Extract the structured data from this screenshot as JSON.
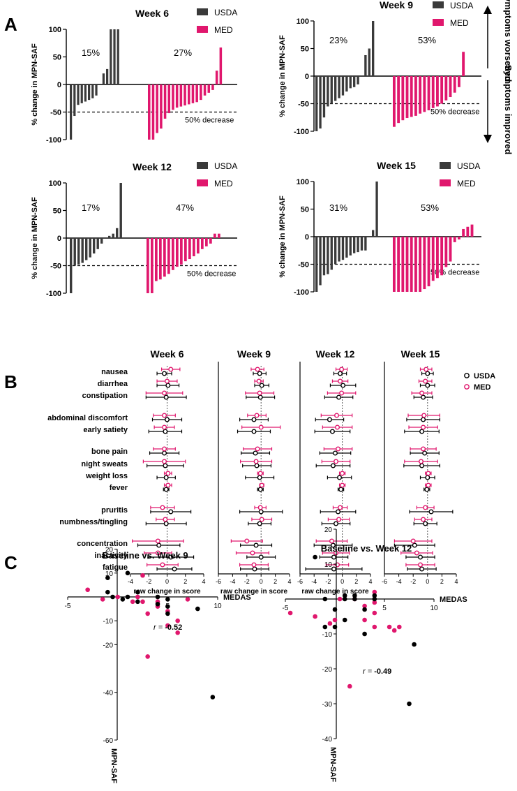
{
  "panel_labels": {
    "a": "A",
    "b": "B",
    "c": "C"
  },
  "colors": {
    "usda": "#3a3a3a",
    "med": "#e0176d",
    "axis": "#000000"
  },
  "chart_data": [
    {
      "type": "bar",
      "panel": "A",
      "title": "Week 6",
      "ylabel": "% change in MPN-SAF",
      "ylim": [
        -100,
        100
      ],
      "yticks": [
        -100,
        -50,
        0,
        50,
        100
      ],
      "legend": [
        "USDA",
        "MED"
      ],
      "threshold": {
        "value": -50,
        "label": "50% decrease"
      },
      "percent_labels": {
        "usda": "15%",
        "med": "27%"
      },
      "usda_values": [
        -100,
        -57,
        -37,
        -34,
        -31,
        -28,
        -25,
        -20,
        0,
        20,
        28,
        100,
        100,
        100
      ],
      "med_values": [
        -100,
        -100,
        -88,
        -80,
        -62,
        -52,
        -46,
        -42,
        -40,
        -38,
        -36,
        -34,
        -32,
        -28,
        -20,
        -15,
        -10,
        25,
        67
      ]
    },
    {
      "type": "bar",
      "panel": "A",
      "title": "Week 9",
      "ylabel": "% change in MPN-SAF",
      "ylim": [
        -100,
        100
      ],
      "yticks": [
        -100,
        -50,
        0,
        50,
        100
      ],
      "legend": [
        "USDA",
        "MED"
      ],
      "threshold": {
        "value": -50,
        "label": "50% decrease"
      },
      "percent_labels": {
        "usda": "23%",
        "med": "53%"
      },
      "side_annotations": {
        "up": "Symptoms worsened",
        "down": "Symptoms improved"
      },
      "usda_values": [
        -100,
        -95,
        -75,
        -55,
        -50,
        -45,
        -40,
        -35,
        -28,
        -22,
        -20,
        -15,
        0,
        38,
        50,
        100
      ],
      "med_values": [
        -92,
        -85,
        -80,
        -76,
        -74,
        -72,
        -68,
        -65,
        -62,
        -58,
        -55,
        -50,
        -44,
        -38,
        -30,
        -20,
        44
      ]
    },
    {
      "type": "bar",
      "panel": "A",
      "title": "Week 12",
      "ylabel": "% change in MPN-SAF",
      "ylim": [
        -100,
        100
      ],
      "yticks": [
        -100,
        -50,
        0,
        50,
        100
      ],
      "legend": [
        "USDA",
        "MED"
      ],
      "threshold": {
        "value": -50,
        "label": "50% decrease"
      },
      "percent_labels": {
        "usda": "17%",
        "med": "47%"
      },
      "usda_values": [
        -100,
        -50,
        -48,
        -45,
        -40,
        -35,
        -28,
        -20,
        -10,
        0,
        4,
        8,
        18,
        100
      ],
      "med_values": [
        -100,
        -100,
        -78,
        -75,
        -70,
        -65,
        -58,
        -52,
        -48,
        -42,
        -38,
        -33,
        -28,
        -20,
        -15,
        -10,
        8,
        8
      ]
    },
    {
      "type": "bar",
      "panel": "A",
      "title": "Week 15",
      "ylabel": "% change in MPN-SAF",
      "ylim": [
        -100,
        100
      ],
      "yticks": [
        -100,
        -50,
        0,
        50,
        100
      ],
      "legend": [
        "USDA",
        "MED"
      ],
      "threshold": {
        "value": -50,
        "label": "50% decrease"
      },
      "percent_labels": {
        "usda": "31%",
        "med": "53%"
      },
      "usda_values": [
        -100,
        -88,
        -70,
        -68,
        -60,
        -50,
        -45,
        -42,
        -38,
        -34,
        -30,
        -28,
        -25,
        -25,
        0,
        12,
        100
      ],
      "med_values": [
        -100,
        -100,
        -100,
        -100,
        -100,
        -100,
        -100,
        -95,
        -90,
        -80,
        -75,
        -70,
        -55,
        -45,
        -10,
        -5,
        14,
        18,
        22
      ]
    },
    {
      "type": "forest",
      "panel": "B",
      "xlabel": "raw change in score",
      "xlim": [
        -6,
        4
      ],
      "xticks_first": [
        -4,
        -2,
        0,
        2,
        4
      ],
      "xticks": [
        -6,
        -4,
        -2,
        0,
        2,
        4
      ],
      "legend": [
        "USDA",
        "MED"
      ],
      "symptoms": [
        "nausea",
        "diarrhea",
        "constipation",
        "abdominal discomfort",
        "early satiety",
        "bone pain",
        "night sweats",
        "weight loss",
        "fever",
        "pruritis",
        "numbness/tingling",
        "concentration",
        "inactivity",
        "fatigue"
      ],
      "weeks": [
        {
          "title": "Week 6",
          "usda": [
            [
              -0.3,
              0.8
            ],
            [
              0.1,
              1.2
            ],
            [
              -0.1,
              2.2
            ],
            [
              0.0,
              1.6
            ],
            [
              -0.2,
              1.8
            ],
            [
              -0.3,
              1.6
            ],
            [
              -0.2,
              2.0
            ],
            [
              -0.1,
              1.0
            ],
            [
              -0.1,
              0.3
            ],
            [
              0.4,
              2.2
            ],
            [
              -0.1,
              2.2
            ],
            [
              -0.9,
              2.3
            ],
            [
              0.4,
              2.5
            ],
            [
              0.8,
              1.9
            ]
          ],
          "med": [
            [
              0.4,
              1.0
            ],
            [
              0.0,
              1.1
            ],
            [
              -0.3,
              2.0
            ],
            [
              -0.3,
              1.2
            ],
            [
              -0.3,
              1.1
            ],
            [
              -0.3,
              1.2
            ],
            [
              -0.3,
              2.3
            ],
            [
              0.1,
              0.4
            ],
            [
              0.1,
              0.4
            ],
            [
              -0.5,
              1.3
            ],
            [
              -0.2,
              1.0
            ],
            [
              -1.0,
              2.8
            ],
            [
              -1.0,
              1.5
            ],
            [
              -0.5,
              1.7
            ]
          ]
        },
        {
          "title": "Week 9",
          "usda": [
            [
              -0.2,
              0.9
            ],
            [
              0.1,
              1.0
            ],
            [
              -0.1,
              2.0
            ],
            [
              -1.0,
              2.0
            ],
            [
              -1.0,
              2.3
            ],
            [
              -0.8,
              2.0
            ],
            [
              -0.6,
              2.0
            ],
            [
              -0.2,
              2.0
            ],
            [
              -0.1,
              0.4
            ],
            [
              0.0,
              3.0
            ],
            [
              -0.2,
              1.6
            ],
            [
              -0.7,
              2.2
            ],
            [
              0.0,
              2.0
            ],
            [
              -0.9,
              2.0
            ]
          ],
          "med": [
            [
              -0.5,
              0.9
            ],
            [
              -0.3,
              0.6
            ],
            [
              -0.2,
              2.0
            ],
            [
              -0.6,
              1.3
            ],
            [
              0.0,
              2.7
            ],
            [
              -0.5,
              2.0
            ],
            [
              -0.7,
              2.2
            ],
            [
              -0.1,
              0.4
            ],
            [
              0.1,
              0.3
            ],
            [
              -0.1,
              0.8
            ],
            [
              0.1,
              1.4
            ],
            [
              -2.0,
              2.2
            ],
            [
              -1.2,
              2.3
            ],
            [
              -1.0,
              2.0
            ]
          ]
        },
        {
          "title": "Week 12",
          "usda": [
            [
              -0.3,
              0.9
            ],
            [
              0.1,
              1.8
            ],
            [
              -0.5,
              2.0
            ],
            [
              -1.8,
              2.0
            ],
            [
              -1.4,
              2.5
            ],
            [
              -1.0,
              2.2
            ],
            [
              -1.3,
              2.4
            ],
            [
              -0.4,
              1.7
            ],
            [
              -0.2,
              0.4
            ],
            [
              -0.6,
              2.5
            ],
            [
              -0.9,
              2.0
            ],
            [
              -1.3,
              2.7
            ],
            [
              -1.2,
              2.0
            ],
            [
              -1.2,
              4.0
            ]
          ],
          "med": [
            [
              -0.1,
              0.8
            ],
            [
              -0.3,
              1.1
            ],
            [
              -0.1,
              2.0
            ],
            [
              -0.8,
              2.2
            ],
            [
              -0.7,
              2.1
            ],
            [
              -0.6,
              2.0
            ],
            [
              -0.9,
              2.0
            ],
            [
              0.0,
              0.4
            ],
            [
              0.0,
              0.4
            ],
            [
              -0.3,
              1.0
            ],
            [
              -0.5,
              1.5
            ],
            [
              -1.5,
              2.2
            ],
            [
              -0.9,
              1.9
            ],
            [
              -0.7,
              1.6
            ]
          ]
        },
        {
          "title": "Week 15",
          "usda": [
            [
              0.0,
              0.8
            ],
            [
              0.0,
              1.0
            ],
            [
              -0.6,
              1.3
            ],
            [
              -0.6,
              2.3
            ],
            [
              -0.8,
              2.4
            ],
            [
              -0.4,
              2.0
            ],
            [
              -0.8,
              2.5
            ],
            [
              0.0,
              1.0
            ],
            [
              -0.1,
              0.4
            ],
            [
              0.5,
              3.0
            ],
            [
              -0.3,
              1.6
            ],
            [
              -1.8,
              2.8
            ],
            [
              -1.0,
              2.0
            ],
            [
              -0.8,
              2.0
            ]
          ],
          "med": [
            [
              -0.2,
              0.8
            ],
            [
              -0.3,
              0.9
            ],
            [
              -0.8,
              1.4
            ],
            [
              -0.5,
              2.2
            ],
            [
              -0.6,
              2.0
            ],
            [
              -0.6,
              1.8
            ],
            [
              -0.9,
              2.3
            ],
            [
              0.1,
              0.4
            ],
            [
              0.1,
              0.4
            ],
            [
              -0.3,
              1.2
            ],
            [
              -0.6,
              1.2
            ],
            [
              -2.0,
              2.6
            ],
            [
              -1.5,
              2.2
            ],
            [
              -1.0,
              2.0
            ]
          ]
        }
      ]
    },
    {
      "type": "scatter",
      "panel": "C",
      "title": "Baseline vs. Week 9",
      "xlabel": "MEDAS",
      "ylabel": "MPN-SAF",
      "xlim": [
        -5,
        10
      ],
      "ylim": [
        -60,
        20
      ],
      "xticks": [
        -5,
        5,
        10
      ],
      "yticks": [
        20,
        10,
        -10,
        -20,
        -40,
        -60
      ],
      "r_label": "r = ",
      "r_value": "-0.52",
      "usda_points": [
        [
          -1,
          8
        ],
        [
          -1,
          2
        ],
        [
          -0.5,
          0
        ],
        [
          0.5,
          -1
        ],
        [
          1,
          10
        ],
        [
          1,
          0
        ],
        [
          2,
          2
        ],
        [
          2,
          -2
        ],
        [
          4,
          0
        ],
        [
          4,
          -3
        ],
        [
          5,
          -1
        ],
        [
          5,
          -4
        ],
        [
          5,
          -7
        ],
        [
          8,
          -5
        ],
        [
          9.5,
          -42
        ]
      ],
      "med_points": [
        [
          -3,
          3
        ],
        [
          -1.5,
          -1
        ],
        [
          0,
          0
        ],
        [
          1.5,
          -2
        ],
        [
          2,
          0
        ],
        [
          2.5,
          9
        ],
        [
          2.5,
          -2
        ],
        [
          3,
          -7
        ],
        [
          3,
          -25
        ],
        [
          4,
          -2
        ],
        [
          4,
          -4
        ],
        [
          5,
          -6
        ],
        [
          5,
          -12
        ],
        [
          6,
          -10
        ],
        [
          6,
          -15
        ],
        [
          7,
          -1
        ]
      ]
    },
    {
      "type": "scatter",
      "panel": "C",
      "title": "Baseline vs. Week 12",
      "xlabel": "MEDAS",
      "ylabel": "MPN-SAF",
      "xlim": [
        -5,
        10
      ],
      "ylim": [
        -40,
        20
      ],
      "xticks": [
        -5,
        5,
        10
      ],
      "yticks": [
        20,
        10,
        -10,
        -20,
        -30,
        -40
      ],
      "r_label": "r = ",
      "r_value": "-0.49",
      "usda_points": [
        [
          -2,
          12
        ],
        [
          -1,
          0
        ],
        [
          -1,
          -8
        ],
        [
          0,
          -3
        ],
        [
          0,
          -8
        ],
        [
          1,
          1
        ],
        [
          1,
          -6
        ],
        [
          1,
          0
        ],
        [
          2,
          0
        ],
        [
          2,
          1
        ],
        [
          3,
          -3
        ],
        [
          3,
          -10
        ],
        [
          4,
          0
        ],
        [
          4,
          1
        ],
        [
          8,
          -13
        ],
        [
          7.5,
          -30
        ]
      ],
      "med_points": [
        [
          -4.5,
          -4
        ],
        [
          -2,
          -5
        ],
        [
          -0.5,
          -7
        ],
        [
          0,
          -6
        ],
        [
          0.5,
          0
        ],
        [
          1.5,
          -25
        ],
        [
          2,
          0
        ],
        [
          3,
          -2
        ],
        [
          3,
          -6
        ],
        [
          4,
          -4
        ],
        [
          4,
          -8
        ],
        [
          4,
          -1
        ],
        [
          4,
          2
        ],
        [
          5.5,
          -8
        ],
        [
          6,
          -9
        ],
        [
          6.5,
          -8
        ]
      ]
    }
  ]
}
